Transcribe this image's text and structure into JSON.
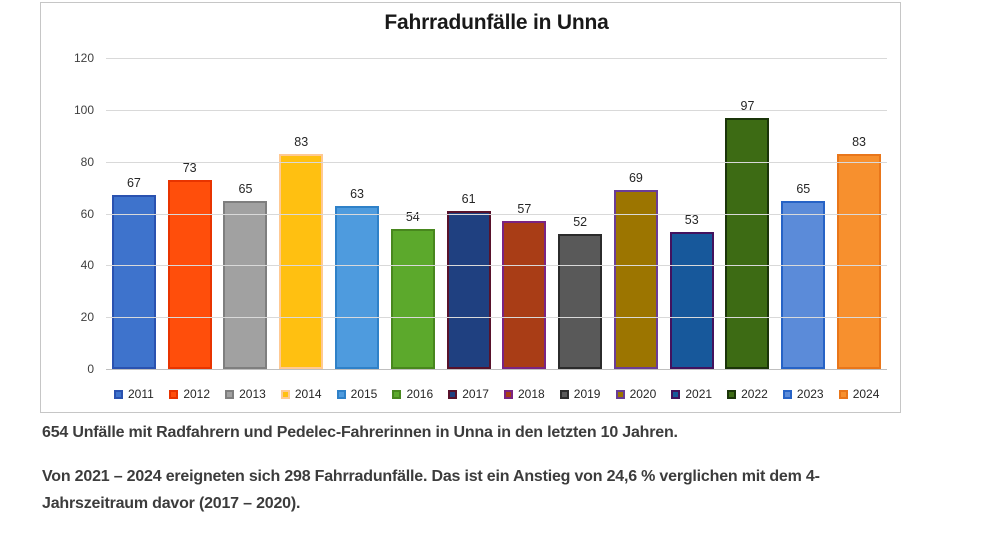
{
  "chart_data": {
    "type": "bar",
    "title": "Fahrradunfälle in Unna",
    "categories": [
      "2011",
      "2012",
      "2013",
      "2014",
      "2015",
      "2016",
      "2017",
      "2018",
      "2019",
      "2020",
      "2021",
      "2022",
      "2023",
      "2024"
    ],
    "values": [
      67,
      73,
      65,
      83,
      63,
      54,
      61,
      57,
      52,
      69,
      53,
      97,
      65,
      83
    ],
    "xlabel": "",
    "ylabel": "",
    "ylim": [
      0,
      120
    ],
    "y_ticks": [
      0,
      20,
      40,
      60,
      80,
      100,
      120
    ],
    "grid": true,
    "legend_position": "bottom",
    "bar_fill_colors": [
      "#3E73CC",
      "#FF4E0B",
      "#A1A1A1",
      "#FFC011",
      "#4E9BDE",
      "#5CA92C",
      "#1F4080",
      "#A93D16",
      "#595959",
      "#9C7500",
      "#17589B",
      "#3D6B14",
      "#5B8BD9",
      "#F7902E"
    ],
    "bar_border_colors": [
      "#2A52B0",
      "#E83400",
      "#7F7F7F",
      "#FFC993",
      "#2F81C8",
      "#48871E",
      "#58122B",
      "#7A2482",
      "#2B2B2B",
      "#6A3D96",
      "#43125E",
      "#1B3509",
      "#2763C6",
      "#E9761A"
    ]
  },
  "notes": {
    "para1": "654 Unfälle mit Radfahrern und Pedelec-Fahrerinnen in Unna in den letzten 10 Jahren.",
    "para2_line1": "Von 2021 – 2024 ereigneten sich 298 Fahrradunfälle. Das ist ein Anstieg von 24,6 % verglichen mit dem 4-",
    "para2_line2": "Jahrszeitraum davor (2017 – 2020)."
  }
}
